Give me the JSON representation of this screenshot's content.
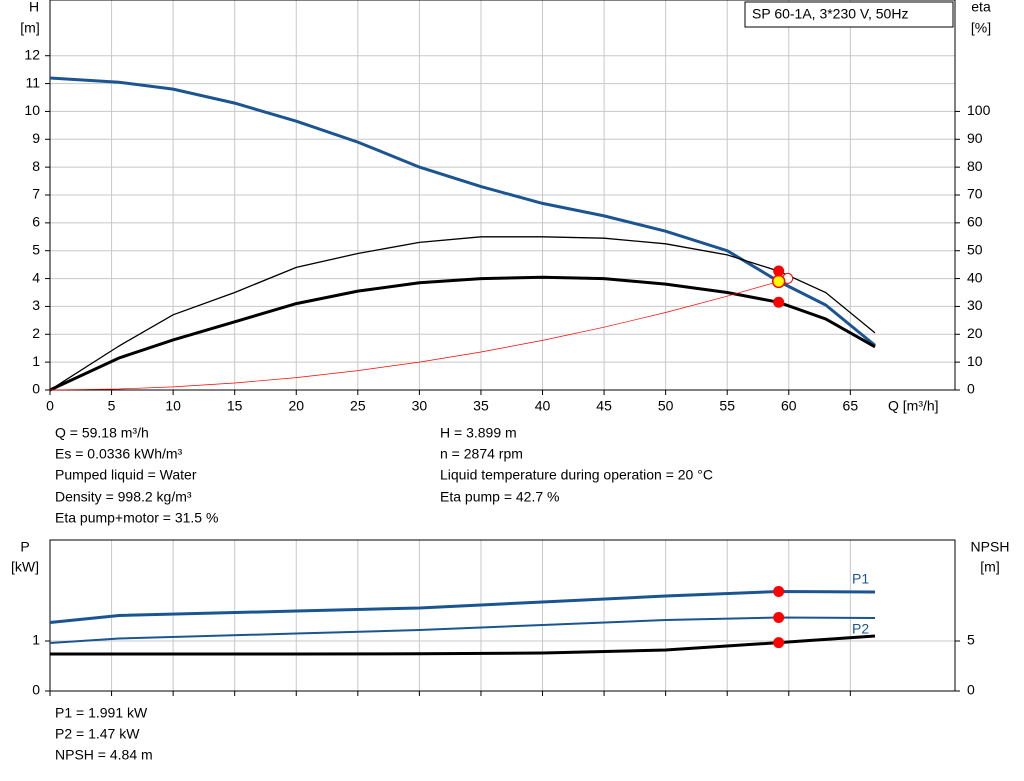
{
  "chart_data": [
    {
      "type": "line",
      "title": "SP 60-1A, 3*230 V, 50Hz",
      "y_label": [
        "H",
        "[m]"
      ],
      "y2_label": [
        "eta",
        "[%]"
      ],
      "x_label": "Q [m³/h]",
      "x": [
        0,
        5.6,
        10,
        15,
        20,
        25,
        30,
        35,
        40,
        45,
        50,
        55,
        59.18,
        63,
        67
      ],
      "series": [
        {
          "color": "#1b5591",
          "values": [
            11.2,
            11.05,
            10.8,
            10.3,
            9.65,
            8.9,
            8.0,
            7.3,
            6.7,
            6.25,
            5.7,
            5.0,
            3.899,
            3.05,
            1.6
          ]
        },
        {
          "color": "#000000",
          "axis": "y2",
          "values": [
            0,
            15.8,
            27,
            35,
            44,
            49,
            53,
            55,
            55,
            54.5,
            52.5,
            48.5,
            42.7,
            35,
            20.5
          ]
        },
        {
          "color": "#000000",
          "axis": "y2",
          "values": [
            0,
            11.5,
            18,
            24.5,
            31,
            35.5,
            38.5,
            40,
            40.5,
            40,
            38,
            35,
            31.5,
            25.5,
            15.5
          ]
        },
        {
          "color": "#ff0000",
          "values": [
            0,
            0.035,
            0.111,
            0.25,
            0.445,
            0.696,
            1.002,
            1.364,
            1.781,
            2.254,
            2.783,
            3.368,
            3.899,
            null,
            null
          ]
        }
      ],
      "xlim": [
        0,
        73.5
      ],
      "xticks": [
        0,
        5,
        10,
        15,
        20,
        25,
        30,
        35,
        40,
        45,
        50,
        55,
        60,
        65
      ],
      "ylim": [
        0,
        14
      ],
      "yticks": [
        0,
        1,
        2,
        3,
        4,
        5,
        6,
        7,
        8,
        9,
        10,
        11,
        12
      ],
      "y2lim": [
        0,
        140
      ],
      "y2ticks": [
        0,
        10,
        20,
        30,
        40,
        50,
        60,
        70,
        80,
        90,
        100
      ],
      "grid": true,
      "annotations": [
        [
          "Q = 59.18 m³/h",
          "Es = 0.0336 kWh/m³",
          "Pumped liquid = Water",
          "Density = 998.2 kg/m³",
          "Eta pump+motor = 31.5 %"
        ],
        [
          "H = 3.899 m",
          "n = 2874 rpm",
          "Liquid temperature during operation = 20 °C",
          "Eta pump = 42.7 %"
        ]
      ]
    },
    {
      "type": "line",
      "y_label": [
        "P",
        "[kW]"
      ],
      "y2_label": [
        "NPSH",
        "[m]"
      ],
      "x": [
        0,
        5.6,
        20,
        30,
        40,
        50,
        59.18,
        67
      ],
      "series": [
        {
          "name": "P1",
          "color": "#1b5591",
          "values": [
            1.37,
            1.51,
            1.6,
            1.66,
            1.78,
            1.9,
            1.991,
            1.98
          ]
        },
        {
          "name": "P2",
          "color": "#1b5591",
          "values": [
            0.96,
            1.05,
            1.15,
            1.22,
            1.32,
            1.42,
            1.47,
            1.46
          ]
        },
        {
          "color": "#000000",
          "axis": "y2",
          "values": [
            3.7,
            3.7,
            3.7,
            3.72,
            3.8,
            4.1,
            4.84,
            5.5
          ]
        }
      ],
      "xlim": [
        0,
        73.5
      ],
      "ylim": [
        0,
        3.02
      ],
      "yticks": [
        0,
        1
      ],
      "y2lim": [
        0,
        15.1
      ],
      "y2ticks": [
        0,
        5
      ],
      "grid": true,
      "annotations": [
        "P1 = 1.991 kW",
        "P2 = 1.47 kW",
        "NPSH = 4.84 m"
      ]
    }
  ]
}
